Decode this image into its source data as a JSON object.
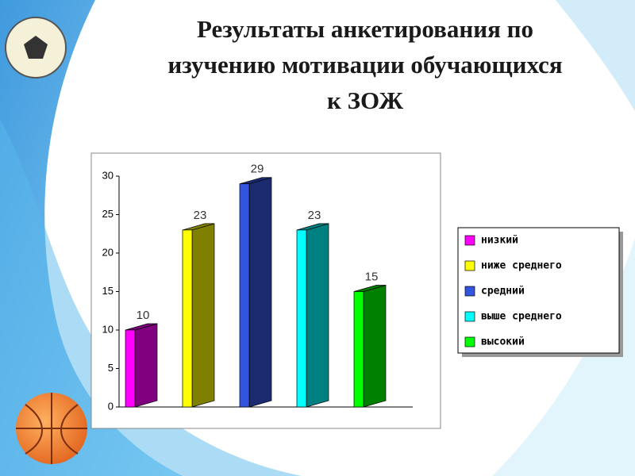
{
  "chart_data": {
    "type": "bar3d",
    "title": "Результаты анкетирования по изучению мотивации обучающихся к ЗОЖ",
    "categories": [
      "низкий",
      "ниже среднего",
      "средний",
      "выше среднего",
      "высокий"
    ],
    "values": [
      10,
      23,
      29,
      23,
      15
    ],
    "colors": [
      "#ff00ff",
      "#ffff00",
      "#3355dd",
      "#00ffff",
      "#00ff00"
    ],
    "ylim": [
      0,
      30
    ],
    "yticks": [
      0,
      5,
      10,
      15,
      20,
      25,
      30
    ]
  }
}
